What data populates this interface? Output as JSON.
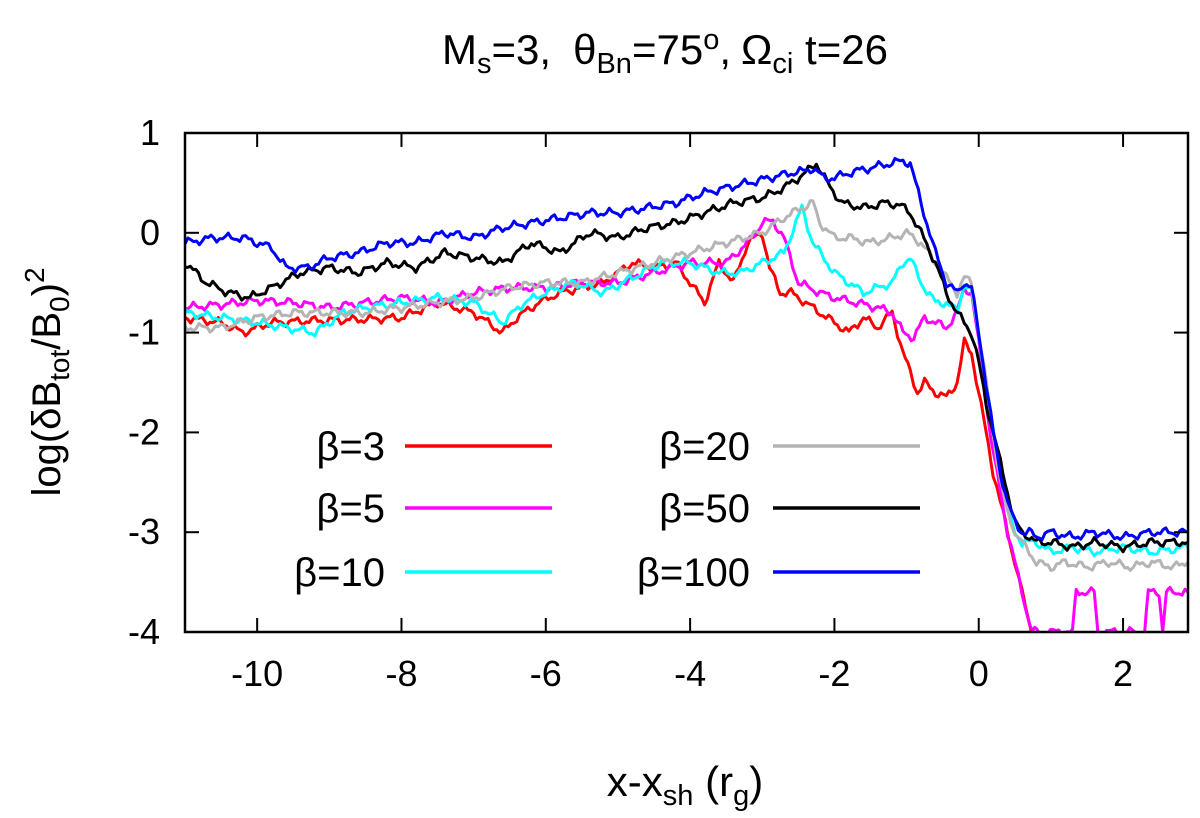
{
  "chart_data": {
    "type": "line",
    "title_parts": {
      "m": "M",
      "m_sub": "s",
      "m_eq": "=3,",
      "theta": "θ",
      "theta_sub": "Bn",
      "theta_eq": "=75",
      "theta_sup": "o",
      "comma": ",",
      "omega": "Ω",
      "omega_sub": "ci",
      "omega_eq": " t=26"
    },
    "xlabel_parts": {
      "a": "x-x",
      "a_sub": "sh",
      "b": " (r",
      "b_sub": "g",
      "c": ")"
    },
    "ylabel_parts": {
      "a": "log(δB",
      "a_sub": "tot",
      "b": "/B",
      "b_sub": "0",
      "c": ")",
      "c_sup": "2"
    },
    "xlim": [
      -11,
      2.9
    ],
    "ylim": [
      -4,
      1
    ],
    "xticks": [
      -10,
      -8,
      -6,
      -4,
      -2,
      0,
      2
    ],
    "yticks": [
      -4,
      -3,
      -2,
      -1,
      0,
      1
    ],
    "grid": false,
    "legend_position": "lower-left",
    "series": [
      {
        "name": "β=3",
        "color": "#ff0000",
        "x": [
          -11,
          -10.5,
          -10.2,
          -9.8,
          -9.2,
          -8.6,
          -8,
          -7.5,
          -7,
          -6.6,
          -6.4,
          -6.1,
          -5.8,
          -5.5,
          -5.2,
          -4.8,
          -4.5,
          -4.2,
          -3.8,
          -3.6,
          -3.4,
          -3.2,
          -3.0,
          -2.9,
          -2.75,
          -2.6,
          -2.4,
          -2.2,
          -2.0,
          -1.8,
          -1.6,
          -1.4,
          -1.2,
          -1.05,
          -0.95,
          -0.85,
          -0.75,
          -0.6,
          -0.45,
          -0.3,
          -0.2,
          -0.1,
          0.0,
          0.1,
          0.2,
          0.3,
          0.4,
          0.5,
          0.6,
          0.7,
          0.75,
          0.8
        ],
        "values": [
          -0.85,
          -0.9,
          -1.0,
          -0.9,
          -0.88,
          -0.87,
          -0.85,
          -0.7,
          -0.8,
          -1.0,
          -0.85,
          -0.7,
          -0.6,
          -0.55,
          -0.5,
          -0.3,
          -0.35,
          -0.3,
          -0.7,
          -0.3,
          -0.5,
          -0.1,
          0.0,
          -0.35,
          -0.6,
          -0.6,
          -0.7,
          -0.8,
          -0.9,
          -1.0,
          -0.85,
          -0.95,
          -0.8,
          -1.2,
          -1.4,
          -1.6,
          -1.5,
          -1.6,
          -1.65,
          -1.5,
          -1.1,
          -1.2,
          -1.6,
          -2.0,
          -2.4,
          -2.7,
          -3.0,
          -3.3,
          -3.6,
          -3.9,
          -4.0,
          -4.0
        ]
      },
      {
        "name": "β=5",
        "color": "#ff00ff",
        "x": [
          -11,
          -10.5,
          -10,
          -9.5,
          -9,
          -8.5,
          -8,
          -7.5,
          -7,
          -6.5,
          -6,
          -5.5,
          -5,
          -4.5,
          -4,
          -3.5,
          -3.2,
          -3.0,
          -2.85,
          -2.7,
          -2.5,
          -2.2,
          -2.0,
          -1.7,
          -1.4,
          -1.2,
          -1.05,
          -0.9,
          -0.75,
          -0.6,
          -0.45,
          -0.3,
          -0.2,
          -0.1,
          0.0,
          0.1,
          0.2,
          0.3,
          0.4,
          0.5,
          0.6,
          0.7,
          0.75,
          0.8,
          1.3,
          1.35,
          1.6,
          1.65,
          1.75,
          1.8,
          2.3,
          2.35,
          2.5,
          2.55,
          2.6,
          2.65,
          2.9
        ],
        "values": [
          -0.75,
          -0.72,
          -0.68,
          -0.7,
          -0.75,
          -0.7,
          -0.65,
          -0.7,
          -0.6,
          -0.55,
          -0.55,
          -0.5,
          -0.5,
          -0.4,
          -0.3,
          -0.3,
          -0.1,
          0.1,
          0.12,
          -0.05,
          -0.5,
          -0.6,
          -0.65,
          -0.7,
          -0.75,
          -0.8,
          -1.0,
          -1.05,
          -0.85,
          -0.9,
          -0.95,
          -0.8,
          -0.55,
          -0.6,
          -1.1,
          -1.7,
          -2.2,
          -2.6,
          -3.0,
          -3.3,
          -3.6,
          -3.9,
          -4.0,
          -4.0,
          -4.0,
          -3.6,
          -3.6,
          -4.0,
          -4.0,
          -4.0,
          -4.0,
          -3.6,
          -3.6,
          -4.0,
          -3.6,
          -3.6,
          -3.6
        ]
      },
      {
        "name": "β=10",
        "color": "#00ffff",
        "x": [
          -11,
          -10.5,
          -10,
          -9.6,
          -9.2,
          -8.8,
          -8.5,
          -8,
          -7.5,
          -7,
          -6.6,
          -6.3,
          -6,
          -5.6,
          -5.2,
          -4.8,
          -4.4,
          -4.0,
          -3.6,
          -3.3,
          -3.0,
          -2.7,
          -2.45,
          -2.3,
          -2.1,
          -2.0,
          -1.8,
          -1.6,
          -1.4,
          -1.2,
          -1.05,
          -0.95,
          -0.8,
          -0.6,
          -0.45,
          -0.3,
          -0.2,
          -0.1,
          0.0,
          0.1,
          0.2,
          0.3,
          0.4,
          0.5,
          0.6,
          0.7,
          0.8,
          1.0,
          1.3,
          1.6,
          2.0,
          2.4,
          2.9
        ],
        "values": [
          -0.8,
          -0.85,
          -0.9,
          -0.95,
          -1.0,
          -0.8,
          -0.75,
          -0.7,
          -0.65,
          -0.7,
          -0.9,
          -0.7,
          -0.6,
          -0.5,
          -0.6,
          -0.45,
          -0.3,
          -0.3,
          -0.4,
          -0.4,
          -0.3,
          -0.2,
          0.25,
          -0.1,
          -0.3,
          -0.4,
          -0.5,
          -0.6,
          -0.55,
          -0.5,
          -0.3,
          -0.25,
          -0.5,
          -0.7,
          -0.7,
          -0.8,
          -0.5,
          -0.6,
          -1.0,
          -1.5,
          -2.0,
          -2.4,
          -2.8,
          -3.0,
          -3.1,
          -3.1,
          -3.1,
          -3.2,
          -3.15,
          -3.2,
          -3.15,
          -3.2,
          -3.15
        ]
      },
      {
        "name": "β=20",
        "color": "#b4b4b4",
        "x": [
          -11,
          -10.5,
          -10,
          -9.5,
          -9,
          -8.5,
          -8,
          -7.5,
          -7,
          -6.5,
          -6,
          -5.5,
          -5,
          -4.5,
          -4,
          -3.5,
          -3.0,
          -2.7,
          -2.45,
          -2.3,
          -2.2,
          -2.0,
          -1.8,
          -1.5,
          -1.2,
          -1.0,
          -0.8,
          -0.6,
          -0.45,
          -0.3,
          -0.2,
          -0.1,
          0.0,
          0.1,
          0.2,
          0.3,
          0.4,
          0.5,
          0.6,
          0.7,
          0.8,
          1.0,
          1.2,
          1.5,
          1.8,
          2.1,
          2.4,
          2.7,
          2.9
        ],
        "values": [
          -0.95,
          -0.95,
          -0.85,
          -0.8,
          -0.8,
          -0.8,
          -0.75,
          -0.7,
          -0.65,
          -0.55,
          -0.5,
          -0.5,
          -0.4,
          -0.3,
          -0.2,
          -0.1,
          0.0,
          0.15,
          0.25,
          0.3,
          0.1,
          -0.05,
          -0.05,
          -0.1,
          -0.05,
          0.0,
          -0.1,
          -0.3,
          -0.45,
          -0.6,
          -0.45,
          -0.5,
          -1.0,
          -1.5,
          -2.0,
          -2.5,
          -2.8,
          -3.0,
          -3.1,
          -3.2,
          -3.3,
          -3.35,
          -3.3,
          -3.35,
          -3.3,
          -3.35,
          -3.3,
          -3.35,
          -3.3
        ]
      },
      {
        "name": "β=50",
        "color": "#000000",
        "x": [
          -11,
          -10.7,
          -10.4,
          -10.1,
          -9.8,
          -9.4,
          -9,
          -8.6,
          -8.2,
          -7.8,
          -7.4,
          -7,
          -6.6,
          -6.2,
          -5.8,
          -5.4,
          -5,
          -4.6,
          -4.2,
          -3.8,
          -3.4,
          -3.0,
          -2.7,
          -2.4,
          -2.25,
          -2.1,
          -1.9,
          -1.6,
          -1.3,
          -1.1,
          -0.95,
          -0.8,
          -0.6,
          -0.45,
          -0.3,
          -0.2,
          -0.1,
          0.0,
          0.1,
          0.2,
          0.3,
          0.4,
          0.5,
          0.6,
          0.7,
          0.8,
          1.0,
          1.3,
          1.6,
          2.0,
          2.4,
          2.9
        ],
        "values": [
          -0.3,
          -0.5,
          -0.6,
          -0.65,
          -0.55,
          -0.4,
          -0.35,
          -0.4,
          -0.3,
          -0.35,
          -0.2,
          -0.25,
          -0.3,
          -0.1,
          -0.2,
          0.0,
          -0.05,
          0.05,
          0.1,
          0.2,
          0.3,
          0.35,
          0.45,
          0.6,
          0.7,
          0.5,
          0.3,
          0.25,
          0.3,
          0.28,
          0.2,
          0.0,
          -0.3,
          -0.6,
          -0.8,
          -0.9,
          -1.0,
          -1.3,
          -1.7,
          -2.0,
          -2.3,
          -2.6,
          -2.9,
          -3.0,
          -3.05,
          -3.1,
          -3.1,
          -3.15,
          -3.1,
          -3.15,
          -3.1,
          -3.1
        ]
      },
      {
        "name": "β=100",
        "color": "#0000ff",
        "x": [
          -11,
          -10.6,
          -10.2,
          -9.8,
          -9.6,
          -9.3,
          -9,
          -8.6,
          -8.2,
          -7.8,
          -7.4,
          -7,
          -6.6,
          -6.2,
          -5.8,
          -5.4,
          -5,
          -4.6,
          -4.2,
          -3.8,
          -3.5,
          -3.2,
          -2.9,
          -2.6,
          -2.4,
          -2.3,
          -2.15,
          -2.0,
          -1.8,
          -1.5,
          -1.2,
          -1.05,
          -0.95,
          -0.8,
          -0.6,
          -0.45,
          -0.3,
          -0.2,
          -0.1,
          0.0,
          0.1,
          0.2,
          0.3,
          0.4,
          0.5,
          0.6,
          0.7,
          0.8,
          1.0,
          1.3,
          1.6,
          2.0,
          2.4,
          2.9
        ],
        "values": [
          -0.1,
          -0.05,
          -0.05,
          -0.15,
          -0.35,
          -0.35,
          -0.25,
          -0.2,
          -0.1,
          -0.1,
          0.0,
          -0.05,
          0.05,
          0.1,
          0.15,
          0.2,
          0.2,
          0.25,
          0.3,
          0.4,
          0.45,
          0.5,
          0.55,
          0.6,
          0.62,
          0.65,
          0.55,
          0.55,
          0.6,
          0.65,
          0.7,
          0.72,
          0.7,
          0.3,
          -0.2,
          -0.5,
          -0.6,
          -0.5,
          -0.55,
          -1.0,
          -1.5,
          -2.0,
          -2.4,
          -2.7,
          -2.9,
          -3.0,
          -3.0,
          -3.05,
          -3.0,
          -3.05,
          -3.0,
          -3.05,
          -3.0,
          -3.0
        ]
      }
    ]
  }
}
